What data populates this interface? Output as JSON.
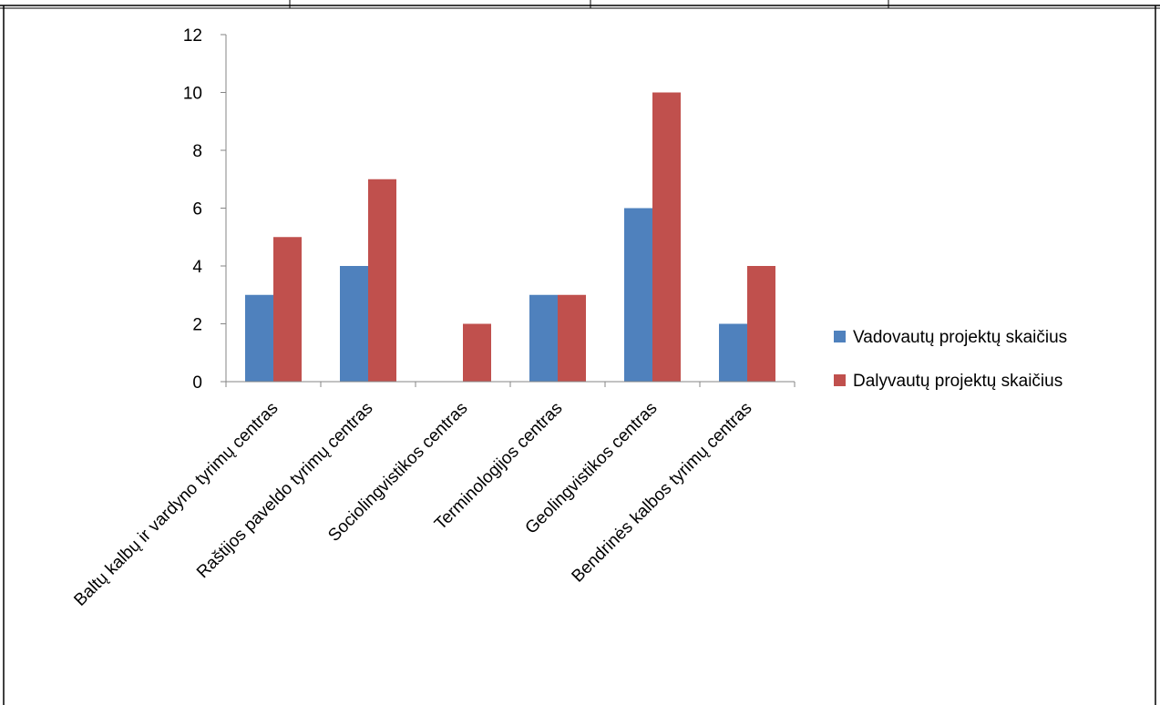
{
  "chart_data": {
    "type": "bar",
    "categories": [
      "Baltų kalbų ir vardyno tyrimų centras",
      "Raštijos paveldo tyrimų centras",
      "Sociolingvistikos centras",
      "Terminologijos centras",
      "Geolingvistikos centras",
      "Bendrinės kalbos tyrimų centras"
    ],
    "series": [
      {
        "name": "Vadovautų projektų skaičius",
        "values": [
          3,
          4,
          0,
          3,
          6,
          2
        ],
        "color": "#4F81BD"
      },
      {
        "name": "Dalyvautų projektų skaičius",
        "values": [
          5,
          7,
          2,
          3,
          10,
          4
        ],
        "color": "#C0504D"
      }
    ],
    "ylim": [
      0,
      12
    ],
    "yticks": [
      "0",
      "2",
      "4",
      "6",
      "8",
      "10",
      "12"
    ],
    "grid": false,
    "legend": "right"
  }
}
